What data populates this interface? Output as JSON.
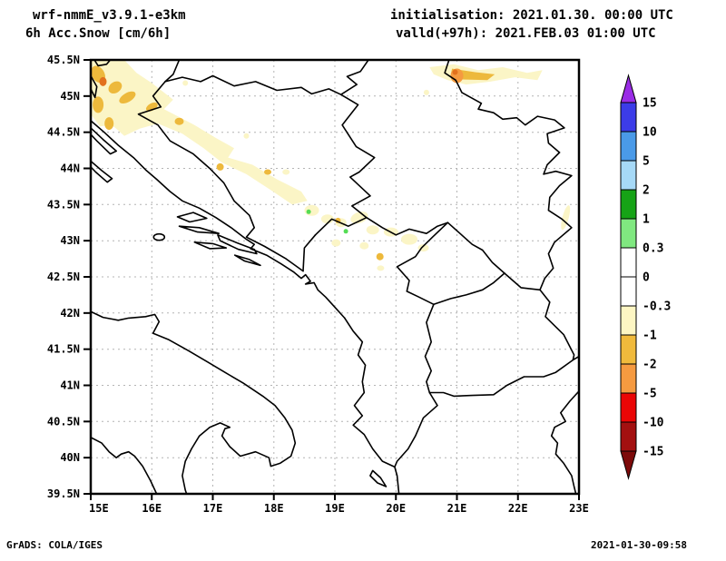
{
  "header": {
    "model": "wrf-nmmE_v3.9.1-e3km",
    "field": "6h Acc.Snow [cm/6h]",
    "init": "initialisation: 2021.01.30.  00:00 UTC",
    "valid": "valld(+97h): 2021.FEB.03 01:00 UTC"
  },
  "footer": {
    "left": "GrADS: COLA/IGES",
    "right": "2021-01-30-09:58"
  },
  "axes": {
    "lat_ticks": [
      {
        "label": "45.5N",
        "value": 45.5
      },
      {
        "label": "45N",
        "value": 45
      },
      {
        "label": "44.5N",
        "value": 44.5
      },
      {
        "label": "44N",
        "value": 44
      },
      {
        "label": "43.5N",
        "value": 43.5
      },
      {
        "label": "43N",
        "value": 43
      },
      {
        "label": "42.5N",
        "value": 42.5
      },
      {
        "label": "42N",
        "value": 42
      },
      {
        "label": "41.5N",
        "value": 41.5
      },
      {
        "label": "41N",
        "value": 41
      },
      {
        "label": "40.5N",
        "value": 40.5
      },
      {
        "label": "40N",
        "value": 40
      },
      {
        "label": "39.5N",
        "value": 39.5
      }
    ],
    "lon_ticks": [
      {
        "label": "15E",
        "value": 15
      },
      {
        "label": "16E",
        "value": 16
      },
      {
        "label": "17E",
        "value": 17
      },
      {
        "label": "18E",
        "value": 18
      },
      {
        "label": "19E",
        "value": 19
      },
      {
        "label": "20E",
        "value": 20
      },
      {
        "label": "21E",
        "value": 21
      },
      {
        "label": "22E",
        "value": 22
      },
      {
        "label": "23E",
        "value": 23
      }
    ]
  },
  "map_extent": {
    "lon_min": 15,
    "lon_max": 23,
    "lat_min": 39.5,
    "lat_max": 45.5
  },
  "colorbar": {
    "boundary_labels": [
      "15",
      "10",
      "5",
      "2",
      "1",
      "0.3",
      "0",
      "-0.3",
      "-1",
      "-2",
      "-5",
      "-10",
      "-15"
    ],
    "segment_colors": [
      "#3c3ce8",
      "#4a9ae8",
      "#a6d9f7",
      "#16a316",
      "#80e880",
      "#ffffff",
      "#ffffff",
      "#fdf6c3",
      "#f0ba3c",
      "#f59a40",
      "#ea0505",
      "#a31010"
    ],
    "arrow_top_color": "#9a2ce6",
    "arrow_bottom_color": "#7d0a0a"
  },
  "palette": {
    "snow-pale": "#fbf5c6",
    "snow-gold": "#edb93c",
    "snow-orange": "#f59a40",
    "snow-deep": "#e2711d",
    "snow-green": "#55dd55",
    "grid": "#b4b4b4"
  }
}
